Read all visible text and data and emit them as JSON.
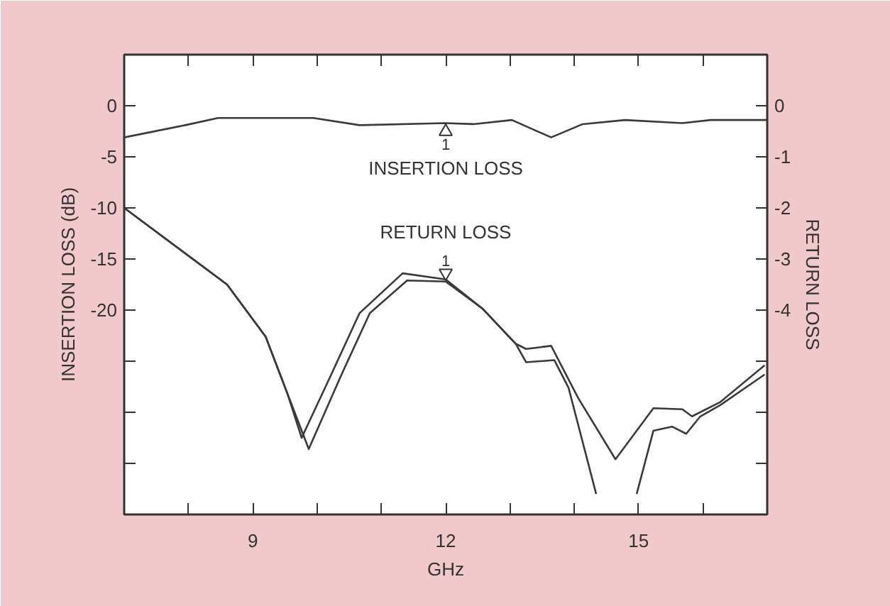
{
  "chart_data": {
    "type": "line",
    "xlabel": "GHz",
    "ylabel": "INSERTION LOSS (dB)",
    "y2label": "RETURN LOSS",
    "xlim": [
      7,
      17
    ],
    "ylim": [
      -40,
      5
    ],
    "y2lim": [
      -8,
      1
    ],
    "xticks": [
      {
        "value": 8,
        "label": null
      },
      9,
      {
        "value": 10,
        "label": null
      },
      {
        "value": 11,
        "label": null
      },
      12,
      {
        "value": 13,
        "label": null
      },
      {
        "value": 14,
        "label": null
      },
      15,
      {
        "value": 16,
        "label": null
      }
    ],
    "yticks": [
      0,
      -5,
      -10,
      -15,
      -20,
      {
        "value": -25,
        "label": null
      },
      {
        "value": -30,
        "label": null
      },
      {
        "value": -35,
        "label": null
      }
    ],
    "y2ticks": [
      0,
      -1,
      -2,
      -3,
      -4,
      {
        "value": -5,
        "label": null
      },
      {
        "value": -6,
        "label": null
      },
      {
        "value": -7,
        "label": null
      }
    ],
    "grid": false,
    "legend": "top",
    "marker": "none",
    "line_style": "solid",
    "series": [
      {
        "name": "INSERTION LOSS",
        "color": "#3a3a3a",
        "x": [
          7,
          7.95,
          8.46,
          9.43,
          9.94,
          10.66,
          11.99,
          12.43,
          13.03,
          13.64,
          14.13,
          14.79,
          15.68,
          16.12,
          17
        ],
        "values": [
          -3.1,
          -1.9,
          -1.2,
          -1.2,
          -1.2,
          -1.9,
          -1.7,
          -1.8,
          -1.4,
          -3.1,
          -1.8,
          -1.4,
          -1.7,
          -1.4,
          -1.4
        ]
      },
      {
        "name": "RETURN LOSS",
        "color": "#3a3a3a",
        "x": [
          7,
          8.6,
          9.2,
          9.54,
          9.76,
          10.22,
          10.66,
          11.33,
          12,
          12.58,
          13.09,
          13.25,
          13.64,
          14.06,
          14.64,
          15.23,
          15.68,
          15.83,
          16.27,
          16.96
        ],
        "values": [
          -10,
          -17.5,
          -22.6,
          -28.2,
          -32.5,
          -26.3,
          -20.3,
          -16.4,
          -17.0,
          -19.9,
          -23.3,
          -23.8,
          -23.5,
          -28.6,
          -34.6,
          -29.6,
          -29.7,
          -30.4,
          -29,
          -25.4
        ]
      },
      {
        "color": "#3a3a3a",
        "x": [
          7,
          8.6,
          9.2,
          9.54,
          9.87,
          10.38,
          10.82,
          11.4,
          12,
          12.58,
          13.09,
          13.25,
          13.69,
          13.91,
          14.34,
          14.6,
          14.97,
          15.23,
          15.52,
          15.74,
          15.96,
          16.27,
          16.96
        ],
        "values": [
          -10,
          -17.5,
          -22.6,
          -28.2,
          -33.6,
          -26.3,
          -20.3,
          -17.1,
          -17.2,
          -19.9,
          -23.3,
          -25.1,
          -24.9,
          -27.6,
          -38,
          null,
          -38,
          -31.8,
          -31.4,
          -32.1,
          -30.4,
          -29.3,
          -26.3
        ]
      }
    ],
    "annotations": [
      {
        "text": "1",
        "x": 12,
        "y": -1.7
      },
      {
        "text": "1",
        "x": 12,
        "y": -17.2
      }
    ]
  }
}
